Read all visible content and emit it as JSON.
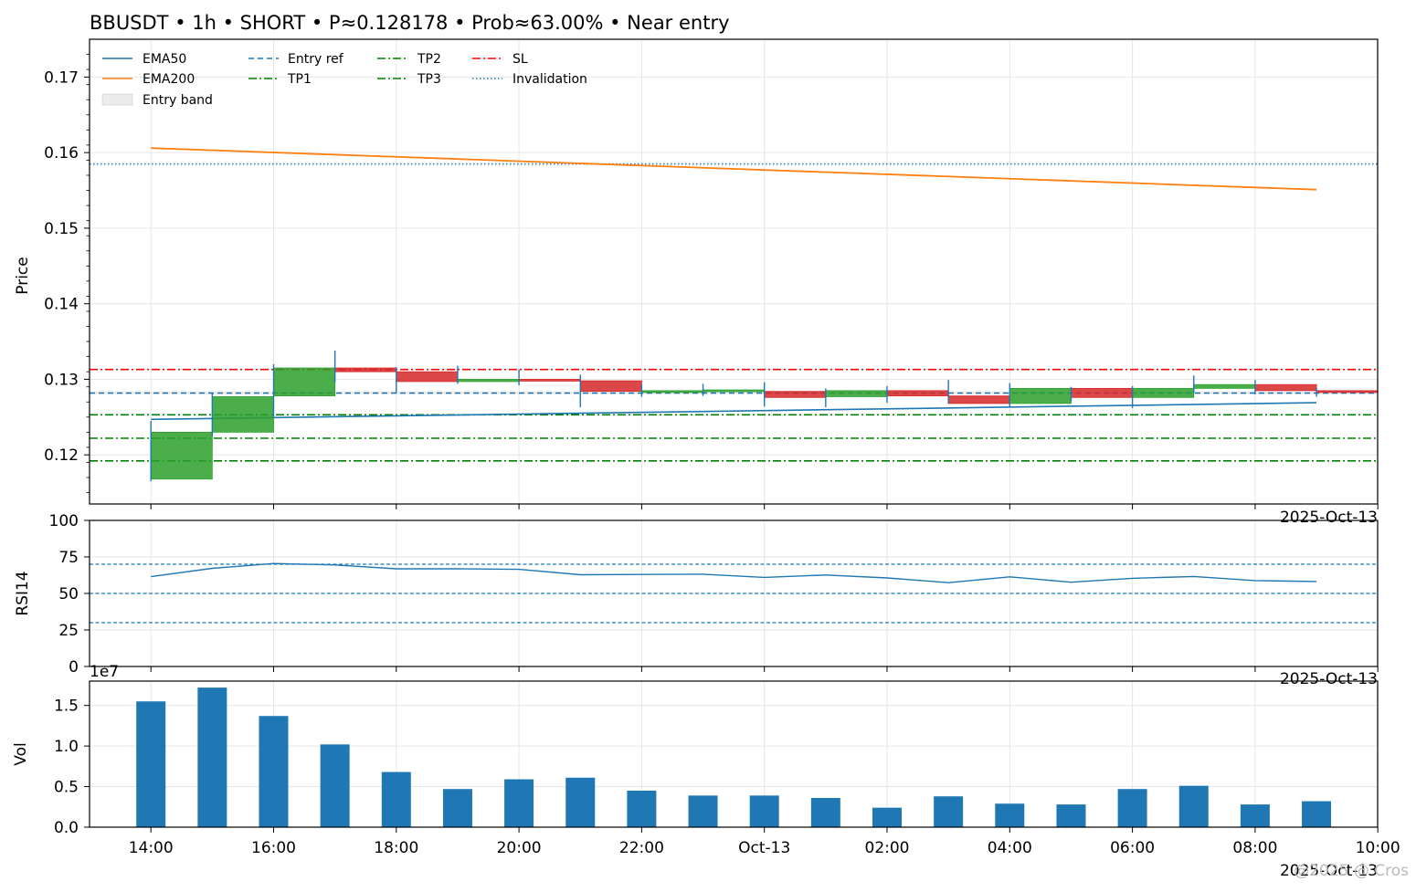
{
  "title": "BBUSDT • 1h • SHORT • P≈0.128178 • Prob≈63.00% • Near entry",
  "colors": {
    "ema50": "#1f77b4",
    "ema200": "#ff7f0e",
    "entry": "#1f77b4",
    "tp": "#008000",
    "sl": "#ff0000",
    "invalidation": "#1f77b4",
    "up": "#2ca02c",
    "down": "#d62728",
    "volume": "#1f77b4",
    "rsi": "#1f77b4",
    "grid": "#e6e6e6"
  },
  "legend": {
    "ema50": "EMA50",
    "ema200": "EMA200",
    "entry_band": "Entry band",
    "entry_ref": "Entry ref",
    "tp1": "TP1",
    "tp2": "TP2",
    "tp3": "TP3",
    "sl": "SL",
    "invalidation": "Invalidation"
  },
  "labels": {
    "price_ylabel": "Price",
    "rsi_ylabel": "RSI14",
    "vol_ylabel": "Vol",
    "vol_exponent": "1e7",
    "date_offset": "2025-Oct-13",
    "watermark": "@2025 @ Cros"
  },
  "chart_data": [
    {
      "type": "candlestick",
      "ylabel": "Price",
      "ylim": [
        0.1135,
        0.175
      ],
      "yticks": [
        0.12,
        0.13,
        0.14,
        0.15,
        0.16,
        0.17
      ],
      "ytick_labels": [
        "0.12",
        "0.13",
        "0.14",
        "0.15",
        "0.16",
        "0.17"
      ],
      "grid": true,
      "legend_position": "top-left",
      "candles": [
        {
          "time": "14:00",
          "open": 0.1168,
          "high": 0.1245,
          "low": 0.1165,
          "close": 0.123
        },
        {
          "time": "15:00",
          "open": 0.123,
          "high": 0.1282,
          "low": 0.1225,
          "close": 0.1277
        },
        {
          "time": "16:00",
          "open": 0.1278,
          "high": 0.132,
          "low": 0.125,
          "close": 0.1315
        },
        {
          "time": "17:00",
          "open": 0.1315,
          "high": 0.1338,
          "low": 0.1296,
          "close": 0.131
        },
        {
          "time": "18:00",
          "open": 0.131,
          "high": 0.1316,
          "low": 0.1282,
          "close": 0.1297
        },
        {
          "time": "19:00",
          "open": 0.1297,
          "high": 0.1318,
          "low": 0.1294,
          "close": 0.13
        },
        {
          "time": "20:00",
          "open": 0.13,
          "high": 0.1313,
          "low": 0.1292,
          "close": 0.1298
        },
        {
          "time": "21:00",
          "open": 0.1298,
          "high": 0.1306,
          "low": 0.1263,
          "close": 0.1284
        },
        {
          "time": "22:00",
          "open": 0.1284,
          "high": 0.1293,
          "low": 0.1277,
          "close": 0.1285
        },
        {
          "time": "23:00",
          "open": 0.1284,
          "high": 0.1294,
          "low": 0.1278,
          "close": 0.1286
        },
        {
          "time": "00:00",
          "open": 0.1284,
          "high": 0.1296,
          "low": 0.1264,
          "close": 0.1276
        },
        {
          "time": "01:00",
          "open": 0.1277,
          "high": 0.1288,
          "low": 0.1263,
          "close": 0.1285
        },
        {
          "time": "02:00",
          "open": 0.1285,
          "high": 0.1291,
          "low": 0.1269,
          "close": 0.1278
        },
        {
          "time": "03:00",
          "open": 0.1278,
          "high": 0.1299,
          "low": 0.1268,
          "close": 0.1268
        },
        {
          "time": "04:00",
          "open": 0.1268,
          "high": 0.1295,
          "low": 0.1264,
          "close": 0.1288
        },
        {
          "time": "05:00",
          "open": 0.1288,
          "high": 0.129,
          "low": 0.1271,
          "close": 0.1276
        },
        {
          "time": "06:00",
          "open": 0.1276,
          "high": 0.1291,
          "low": 0.1262,
          "close": 0.1288
        },
        {
          "time": "07:00",
          "open": 0.1288,
          "high": 0.1305,
          "low": 0.1282,
          "close": 0.1293
        },
        {
          "time": "08:00",
          "open": 0.1293,
          "high": 0.1299,
          "low": 0.128,
          "close": 0.1285
        },
        {
          "time": "09:00",
          "open": 0.1285,
          "high": 0.1288,
          "low": 0.1277,
          "close": 0.1283
        }
      ],
      "ema50": {
        "start": 0.1247,
        "end": 0.1269
      },
      "ema200": {
        "start": 0.1606,
        "end": 0.1551
      },
      "levels": {
        "entry_ref": 0.12818,
        "entry_band": [
          0.128,
          0.1284
        ],
        "tp1": 0.1192,
        "tp2": 0.1253,
        "tp3": 0.1222,
        "sl": 0.1313,
        "invalidation": 0.1585
      }
    },
    {
      "type": "line",
      "ylabel": "RSI14",
      "ylim": [
        0,
        100
      ],
      "yticks": [
        0,
        25,
        50,
        75,
        100
      ],
      "ytick_labels": [
        "0",
        "25",
        "50",
        "75",
        "100"
      ],
      "reference_lines": [
        70,
        50,
        30
      ],
      "values": [
        61.5,
        67.2,
        70.5,
        69.5,
        66.9,
        66.9,
        66.5,
        62.8,
        63.0,
        63.2,
        61.0,
        62.6,
        60.6,
        57.4,
        61.4,
        57.7,
        60.4,
        61.6,
        58.8,
        58.2
      ]
    },
    {
      "type": "bar",
      "ylabel": "Vol",
      "ylim": [
        0,
        1.8
      ],
      "yticks": [
        0,
        0.5,
        1.0,
        1.5
      ],
      "ytick_labels": [
        "0.0",
        "0.5",
        "1.0",
        "1.5"
      ],
      "scale_label": "1e7",
      "values": [
        1.55,
        1.72,
        1.37,
        1.02,
        0.68,
        0.47,
        0.59,
        0.61,
        0.45,
        0.39,
        0.39,
        0.36,
        0.24,
        0.38,
        0.29,
        0.28,
        0.47,
        0.51,
        0.28,
        0.32
      ],
      "xtick_labels": [
        "14:00",
        "16:00",
        "18:00",
        "20:00",
        "22:00",
        "Oct-13",
        "02:00",
        "04:00",
        "06:00",
        "08:00",
        "10:00"
      ]
    }
  ]
}
